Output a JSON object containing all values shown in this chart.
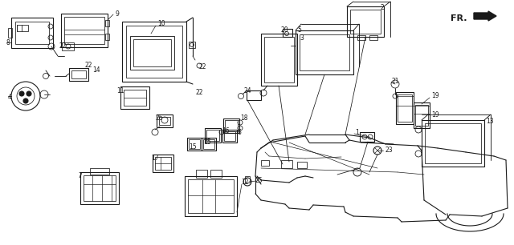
{
  "bg_color": "#ffffff",
  "line_color": "#1a1a1a",
  "lw": 0.8,
  "fig_w": 6.4,
  "fig_h": 3.06,
  "dpi": 100
}
